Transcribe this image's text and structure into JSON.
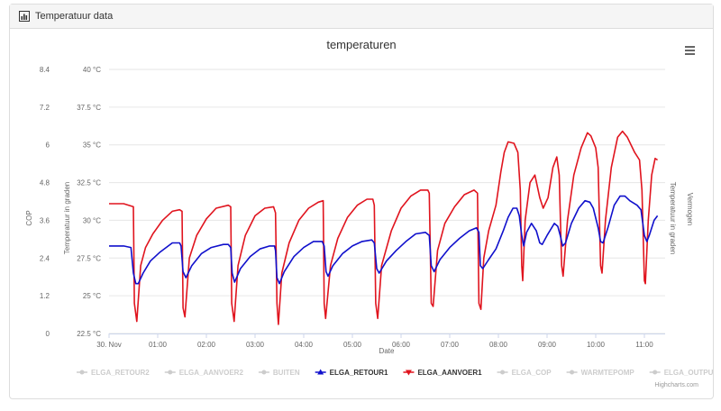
{
  "panel": {
    "title": "Temperatuur data",
    "icon": "bar-chart-icon"
  },
  "credits": "Highcharts.com",
  "menu_icon": "hamburger-menu-icon",
  "colors": {
    "retour": "#1010cc",
    "aanvoer": "#e0141e",
    "grid": "#e6e6e6",
    "hidden_legend": "#cccccc"
  },
  "chart_data": {
    "type": "line",
    "title": "temperaturen",
    "xlabel": "Date",
    "x_ticks": [
      "30. Nov",
      "01:00",
      "02:00",
      "03:00",
      "04:00",
      "05:00",
      "06:00",
      "07:00",
      "08:00",
      "09:00",
      "10:00",
      "11:00"
    ],
    "x_range_hours": [
      0,
      11.27
    ],
    "y_left_temp": {
      "title": "Temperatuur in graden",
      "ticks": [
        "22.5 °C",
        "25 °C",
        "27.5 °C",
        "30 °C",
        "32.5 °C",
        "35 °C",
        "37.5 °C",
        "40 °C"
      ],
      "range": [
        22.5,
        40
      ]
    },
    "y_left_cop": {
      "title": "COP",
      "ticks": [
        "0",
        "1.2",
        "2.4",
        "3.6",
        "4.8",
        "6",
        "7.2",
        "8.4"
      ],
      "range": [
        0,
        8.4
      ]
    },
    "y_right_titles": [
      "Temperatuur in graden",
      "Vermogen"
    ],
    "legend": [
      {
        "name": "ELGA_RETOUR2",
        "visible": false
      },
      {
        "name": "ELGA_AANVOER2",
        "visible": false
      },
      {
        "name": "BUITEN",
        "visible": false
      },
      {
        "name": "ELGA_RETOUR1",
        "visible": true,
        "series": "retour"
      },
      {
        "name": "ELGA_AANVOER1",
        "visible": true,
        "series": "aanvoer"
      },
      {
        "name": "ELGA_COP",
        "visible": false
      },
      {
        "name": "WARMTEPOMP",
        "visible": false
      },
      {
        "name": "ELGA_OUTPUT",
        "visible": false
      }
    ],
    "series": [
      {
        "name": "ELGA_AANVOER1",
        "key": "aanvoer",
        "points": [
          [
            0,
            31.1
          ],
          [
            0.3,
            31.1
          ],
          [
            0.5,
            30.9
          ],
          [
            0.52,
            24.5
          ],
          [
            0.57,
            23.3
          ],
          [
            0.65,
            27
          ],
          [
            0.75,
            28.2
          ],
          [
            0.9,
            29.1
          ],
          [
            1.1,
            30
          ],
          [
            1.3,
            30.6
          ],
          [
            1.45,
            30.7
          ],
          [
            1.5,
            30.6
          ],
          [
            1.52,
            24.2
          ],
          [
            1.56,
            23.6
          ],
          [
            1.65,
            27.5
          ],
          [
            1.8,
            29
          ],
          [
            2,
            30.1
          ],
          [
            2.2,
            30.8
          ],
          [
            2.45,
            31
          ],
          [
            2.5,
            30.9
          ],
          [
            2.52,
            24.5
          ],
          [
            2.57,
            23.3
          ],
          [
            2.65,
            27
          ],
          [
            2.8,
            29
          ],
          [
            3,
            30.3
          ],
          [
            3.2,
            30.8
          ],
          [
            3.38,
            30.9
          ],
          [
            3.42,
            30.5
          ],
          [
            3.45,
            24.5
          ],
          [
            3.48,
            23.1
          ],
          [
            3.55,
            26.5
          ],
          [
            3.7,
            28.5
          ],
          [
            3.9,
            30
          ],
          [
            4.1,
            30.8
          ],
          [
            4.3,
            31.2
          ],
          [
            4.4,
            31.3
          ],
          [
            4.42,
            24.5
          ],
          [
            4.45,
            23.5
          ],
          [
            4.55,
            27
          ],
          [
            4.7,
            28.8
          ],
          [
            4.9,
            30.2
          ],
          [
            5.1,
            31
          ],
          [
            5.3,
            31.4
          ],
          [
            5.42,
            31.4
          ],
          [
            5.45,
            31
          ],
          [
            5.48,
            24.5
          ],
          [
            5.52,
            23.5
          ],
          [
            5.6,
            27
          ],
          [
            5.8,
            29.3
          ],
          [
            6,
            30.8
          ],
          [
            6.2,
            31.6
          ],
          [
            6.4,
            32
          ],
          [
            6.55,
            32
          ],
          [
            6.58,
            31.8
          ],
          [
            6.62,
            24.5
          ],
          [
            6.66,
            24.3
          ],
          [
            6.75,
            28
          ],
          [
            6.9,
            29.8
          ],
          [
            7.1,
            30.9
          ],
          [
            7.3,
            31.7
          ],
          [
            7.5,
            32
          ],
          [
            7.57,
            31.8
          ],
          [
            7.6,
            24.5
          ],
          [
            7.64,
            24.1
          ],
          [
            7.7,
            27.5
          ],
          [
            7.8,
            29.3
          ],
          [
            7.95,
            31
          ],
          [
            8.05,
            33.2
          ],
          [
            8.12,
            34.5
          ],
          [
            8.2,
            35.2
          ],
          [
            8.32,
            35.1
          ],
          [
            8.4,
            34.5
          ],
          [
            8.45,
            32
          ],
          [
            8.48,
            27
          ],
          [
            8.5,
            26
          ],
          [
            8.55,
            30
          ],
          [
            8.65,
            32.5
          ],
          [
            8.75,
            33
          ],
          [
            8.85,
            31.5
          ],
          [
            8.92,
            30.8
          ],
          [
            9.02,
            31.5
          ],
          [
            9.12,
            33.5
          ],
          [
            9.2,
            34.2
          ],
          [
            9.25,
            33
          ],
          [
            9.3,
            27
          ],
          [
            9.33,
            26.3
          ],
          [
            9.42,
            30
          ],
          [
            9.55,
            33
          ],
          [
            9.7,
            34.8
          ],
          [
            9.83,
            35.8
          ],
          [
            9.9,
            35.6
          ],
          [
            10,
            34.8
          ],
          [
            10.05,
            33.5
          ],
          [
            10.1,
            27
          ],
          [
            10.13,
            26.5
          ],
          [
            10.2,
            30
          ],
          [
            10.32,
            33.5
          ],
          [
            10.45,
            35.5
          ],
          [
            10.55,
            35.9
          ],
          [
            10.65,
            35.5
          ],
          [
            10.8,
            34.5
          ],
          [
            10.9,
            34
          ],
          [
            10.95,
            32
          ],
          [
            11,
            26
          ],
          [
            11.02,
            25.8
          ],
          [
            11.08,
            30
          ],
          [
            11.15,
            33
          ],
          [
            11.22,
            34.1
          ],
          [
            11.27,
            34
          ]
        ]
      },
      {
        "name": "ELGA_RETOUR1",
        "key": "retour",
        "points": [
          [
            0,
            28.3
          ],
          [
            0.3,
            28.3
          ],
          [
            0.45,
            28.2
          ],
          [
            0.5,
            26.5
          ],
          [
            0.55,
            25.8
          ],
          [
            0.6,
            25.8
          ],
          [
            0.7,
            26.5
          ],
          [
            0.85,
            27.3
          ],
          [
            1.05,
            27.9
          ],
          [
            1.3,
            28.5
          ],
          [
            1.45,
            28.5
          ],
          [
            1.48,
            28.3
          ],
          [
            1.52,
            26.6
          ],
          [
            1.58,
            26.2
          ],
          [
            1.7,
            27
          ],
          [
            1.9,
            27.8
          ],
          [
            2.1,
            28.2
          ],
          [
            2.35,
            28.4
          ],
          [
            2.45,
            28.4
          ],
          [
            2.5,
            28.2
          ],
          [
            2.53,
            26.5
          ],
          [
            2.58,
            25.9
          ],
          [
            2.7,
            26.8
          ],
          [
            2.9,
            27.6
          ],
          [
            3.1,
            28.1
          ],
          [
            3.3,
            28.3
          ],
          [
            3.4,
            28.3
          ],
          [
            3.42,
            28
          ],
          [
            3.45,
            26.2
          ],
          [
            3.5,
            25.8
          ],
          [
            3.6,
            26.6
          ],
          [
            3.8,
            27.6
          ],
          [
            4,
            28.2
          ],
          [
            4.2,
            28.6
          ],
          [
            4.38,
            28.6
          ],
          [
            4.42,
            28.3
          ],
          [
            4.46,
            26.6
          ],
          [
            4.5,
            26.3
          ],
          [
            4.6,
            27
          ],
          [
            4.8,
            27.8
          ],
          [
            5,
            28.3
          ],
          [
            5.2,
            28.6
          ],
          [
            5.4,
            28.7
          ],
          [
            5.45,
            28.5
          ],
          [
            5.5,
            26.8
          ],
          [
            5.55,
            26.5
          ],
          [
            5.7,
            27.3
          ],
          [
            5.9,
            28
          ],
          [
            6.1,
            28.6
          ],
          [
            6.3,
            29.1
          ],
          [
            6.5,
            29.2
          ],
          [
            6.58,
            29
          ],
          [
            6.62,
            27
          ],
          [
            6.68,
            26.6
          ],
          [
            6.8,
            27.4
          ],
          [
            7,
            28.2
          ],
          [
            7.2,
            28.8
          ],
          [
            7.4,
            29.3
          ],
          [
            7.55,
            29.5
          ],
          [
            7.6,
            29.2
          ],
          [
            7.63,
            27
          ],
          [
            7.68,
            26.8
          ],
          [
            7.8,
            27.4
          ],
          [
            7.95,
            28.1
          ],
          [
            8.1,
            29.3
          ],
          [
            8.2,
            30.2
          ],
          [
            8.3,
            30.8
          ],
          [
            8.38,
            30.8
          ],
          [
            8.43,
            30.3
          ],
          [
            8.48,
            29
          ],
          [
            8.52,
            28.3
          ],
          [
            8.58,
            29.2
          ],
          [
            8.68,
            29.8
          ],
          [
            8.78,
            29.3
          ],
          [
            8.85,
            28.5
          ],
          [
            8.9,
            28.4
          ],
          [
            9,
            29
          ],
          [
            9.15,
            29.8
          ],
          [
            9.22,
            29.6
          ],
          [
            9.27,
            29
          ],
          [
            9.32,
            28.3
          ],
          [
            9.38,
            28.5
          ],
          [
            9.5,
            29.8
          ],
          [
            9.65,
            30.8
          ],
          [
            9.78,
            31.3
          ],
          [
            9.88,
            31.2
          ],
          [
            9.95,
            30.8
          ],
          [
            10.05,
            29.5
          ],
          [
            10.1,
            28.6
          ],
          [
            10.15,
            28.5
          ],
          [
            10.25,
            29.5
          ],
          [
            10.38,
            31
          ],
          [
            10.5,
            31.6
          ],
          [
            10.6,
            31.6
          ],
          [
            10.7,
            31.3
          ],
          [
            10.85,
            31
          ],
          [
            10.93,
            30.7
          ],
          [
            11,
            29
          ],
          [
            11.05,
            28.6
          ],
          [
            11.1,
            29
          ],
          [
            11.2,
            30
          ],
          [
            11.27,
            30.3
          ]
        ]
      }
    ]
  }
}
